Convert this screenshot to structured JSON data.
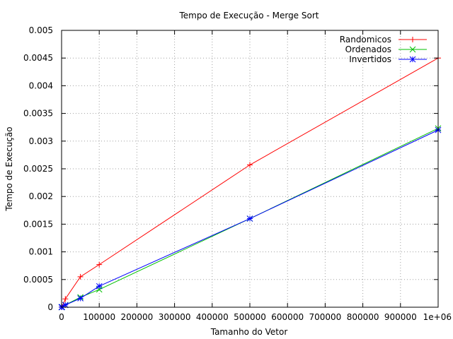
{
  "chart_data": {
    "type": "line",
    "title": "Tempo de Execução - Merge Sort",
    "xlabel": "Tamanho do Vetor",
    "ylabel": "Tempo de Execução",
    "xlim": [
      0,
      1000000
    ],
    "ylim": [
      0,
      0.005
    ],
    "x_ticks": [
      0,
      100000,
      200000,
      300000,
      400000,
      500000,
      600000,
      700000,
      800000,
      900000,
      1000000
    ],
    "x_tick_labels": [
      "0",
      "100000",
      "200000",
      "300000",
      "400000",
      "500000",
      "600000",
      "700000",
      "800000",
      "900000",
      "1e+06"
    ],
    "y_ticks": [
      0,
      0.0005,
      0.001,
      0.0015,
      0.002,
      0.0025,
      0.003,
      0.0035,
      0.004,
      0.0045,
      0.005
    ],
    "y_tick_labels": [
      "0",
      "0.0005",
      "0.001",
      "0.0015",
      "0.002",
      "0.0025",
      "0.003",
      "0.0035",
      "0.004",
      "0.0045",
      "0.005"
    ],
    "grid": true,
    "legend_position": "top-right",
    "series": [
      {
        "name": "Randomicos",
        "color": "#ff0000",
        "marker": "plus",
        "x": [
          100,
          1000,
          10000,
          50000,
          100000,
          500000,
          1000000
        ],
        "y": [
          5e-07,
          5e-06,
          0.00015,
          0.00055,
          0.00077,
          0.00257,
          0.0045
        ]
      },
      {
        "name": "Ordenados",
        "color": "#00c000",
        "marker": "cross",
        "x": [
          100,
          1000,
          10000,
          50000,
          100000,
          500000,
          1000000
        ],
        "y": [
          3e-07,
          3e-06,
          4e-05,
          0.00018,
          0.00032,
          0.0016,
          0.00323
        ]
      },
      {
        "name": "Invertidos",
        "color": "#0000ff",
        "marker": "star",
        "x": [
          100,
          1000,
          10000,
          50000,
          100000,
          500000,
          1000000
        ],
        "y": [
          3e-07,
          3e-06,
          4e-05,
          0.00016,
          0.00038,
          0.0016,
          0.0032
        ]
      }
    ]
  }
}
